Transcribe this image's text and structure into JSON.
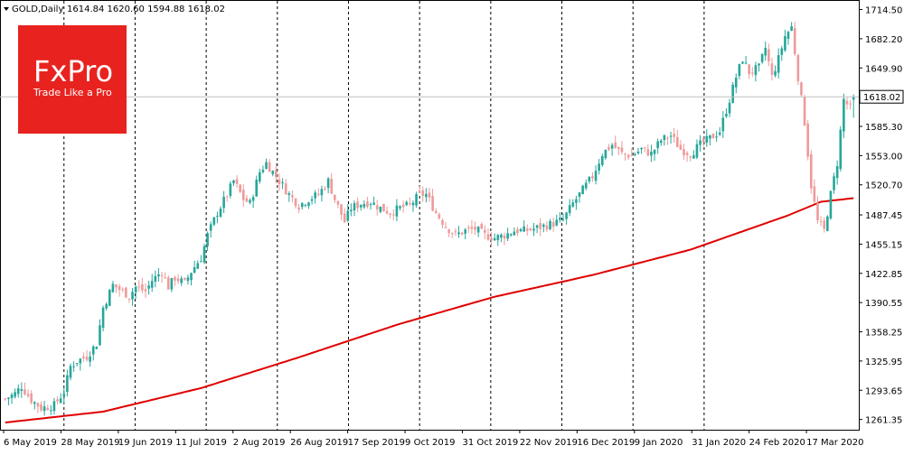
{
  "header": {
    "symbol": "GOLD,Daily",
    "ohlc_text": "1614.84 1620.60 1594.88 1618.02",
    "menu_icon": "triangle-down-icon"
  },
  "logo": {
    "brand": "FxPro",
    "tagline": "Trade Like a Pro",
    "color": "#e8231f"
  },
  "colors": {
    "bull": "#26a69a",
    "bear": "#ef9a9a",
    "ma": "#e00000",
    "grid": "#000000",
    "price_line": "#c0c0c0"
  },
  "chart_data": {
    "type": "candlestick",
    "title": "GOLD,Daily",
    "current_price": 1618.02,
    "last_bar": {
      "open": 1614.84,
      "high": 1620.6,
      "low": 1594.88,
      "close": 1618.02
    },
    "ylim": [
      1250,
      1725
    ],
    "y_ticks": [
      "1714.50",
      "1682.20",
      "1649.90",
      "1618.02",
      "1585.30",
      "1553.00",
      "1520.70",
      "1487.45",
      "1455.15",
      "1422.85",
      "1390.55",
      "1358.25",
      "1325.95",
      "1293.65",
      "1261.35"
    ],
    "x_ticks": [
      "6 May 2019",
      "28 May 2019",
      "19 Jun 2019",
      "11 Jul 2019",
      "2 Aug 2019",
      "26 Aug 2019",
      "17 Sep 2019",
      "9 Oct 2019",
      "31 Oct 2019",
      "22 Nov 2019",
      "16 Dec 2019",
      "9 Jan 2020",
      "31 Jan 2020",
      "24 Feb 2020",
      "17 Mar 2020"
    ],
    "period_separators": [
      "Jun 2019",
      "Jul 2019",
      "Aug 2019",
      "Sep 2019",
      "Oct 2019",
      "Nov 2019",
      "Dec 2019",
      "Jan 2020",
      "Feb 2020",
      "Mar 2020"
    ],
    "close_anchors": [
      [
        0,
        1284
      ],
      [
        3,
        1290
      ],
      [
        5,
        1298
      ],
      [
        8,
        1283
      ],
      [
        11,
        1274
      ],
      [
        15,
        1277
      ],
      [
        18,
        1292
      ],
      [
        20,
        1320
      ],
      [
        22,
        1326
      ],
      [
        25,
        1331
      ],
      [
        28,
        1345
      ],
      [
        30,
        1385
      ],
      [
        33,
        1410
      ],
      [
        35,
        1405
      ],
      [
        38,
        1398
      ],
      [
        40,
        1408
      ],
      [
        43,
        1403
      ],
      [
        45,
        1415
      ],
      [
        48,
        1425
      ],
      [
        50,
        1408
      ],
      [
        52,
        1418
      ],
      [
        55,
        1412
      ],
      [
        57,
        1425
      ],
      [
        60,
        1440
      ],
      [
        62,
        1465
      ],
      [
        65,
        1490
      ],
      [
        68,
        1510
      ],
      [
        70,
        1525
      ],
      [
        73,
        1505
      ],
      [
        75,
        1500
      ],
      [
        78,
        1535
      ],
      [
        80,
        1545
      ],
      [
        82,
        1535
      ],
      [
        84,
        1525
      ],
      [
        87,
        1510
      ],
      [
        90,
        1498
      ],
      [
        93,
        1505
      ],
      [
        96,
        1510
      ],
      [
        99,
        1525
      ],
      [
        101,
        1505
      ],
      [
        104,
        1480
      ],
      [
        106,
        1495
      ],
      [
        109,
        1500
      ],
      [
        112,
        1502
      ],
      [
        115,
        1495
      ],
      [
        118,
        1490
      ],
      [
        121,
        1495
      ],
      [
        124,
        1498
      ],
      [
        127,
        1510
      ],
      [
        129,
        1510
      ],
      [
        132,
        1490
      ],
      [
        135,
        1475
      ],
      [
        138,
        1465
      ],
      [
        141,
        1470
      ],
      [
        144,
        1472
      ],
      [
        147,
        1465
      ],
      [
        150,
        1462
      ],
      [
        153,
        1465
      ],
      [
        156,
        1470
      ],
      [
        159,
        1470
      ],
      [
        162,
        1472
      ],
      [
        165,
        1475
      ],
      [
        168,
        1478
      ],
      [
        171,
        1482
      ],
      [
        174,
        1500
      ],
      [
        177,
        1515
      ],
      [
        180,
        1530
      ],
      [
        183,
        1555
      ],
      [
        186,
        1565
      ],
      [
        189,
        1555
      ],
      [
        192,
        1553
      ],
      [
        195,
        1560
      ],
      [
        198,
        1555
      ],
      [
        201,
        1570
      ],
      [
        204,
        1575
      ],
      [
        207,
        1560
      ],
      [
        210,
        1555
      ],
      [
        213,
        1565
      ],
      [
        216,
        1572
      ],
      [
        219,
        1580
      ],
      [
        222,
        1615
      ],
      [
        224,
        1640
      ],
      [
        226,
        1660
      ],
      [
        228,
        1645
      ],
      [
        231,
        1650
      ],
      [
        233,
        1672
      ],
      [
        235,
        1640
      ],
      [
        237,
        1660
      ],
      [
        239,
        1685
      ],
      [
        241,
        1695
      ],
      [
        243,
        1640
      ],
      [
        245,
        1590
      ],
      [
        247,
        1520
      ],
      [
        249,
        1480
      ],
      [
        251,
        1470
      ],
      [
        253,
        1510
      ],
      [
        255,
        1545
      ],
      [
        257,
        1615
      ],
      [
        259,
        1605
      ],
      [
        260,
        1618
      ]
    ],
    "ma_anchors": [
      [
        0,
        1258
      ],
      [
        30,
        1270
      ],
      [
        60,
        1296
      ],
      [
        90,
        1330
      ],
      [
        120,
        1366
      ],
      [
        150,
        1397
      ],
      [
        180,
        1421
      ],
      [
        210,
        1449
      ],
      [
        240,
        1487
      ],
      [
        250,
        1502
      ],
      [
        260,
        1506
      ]
    ],
    "n_bars": 261,
    "moving_average_label": ""
  }
}
